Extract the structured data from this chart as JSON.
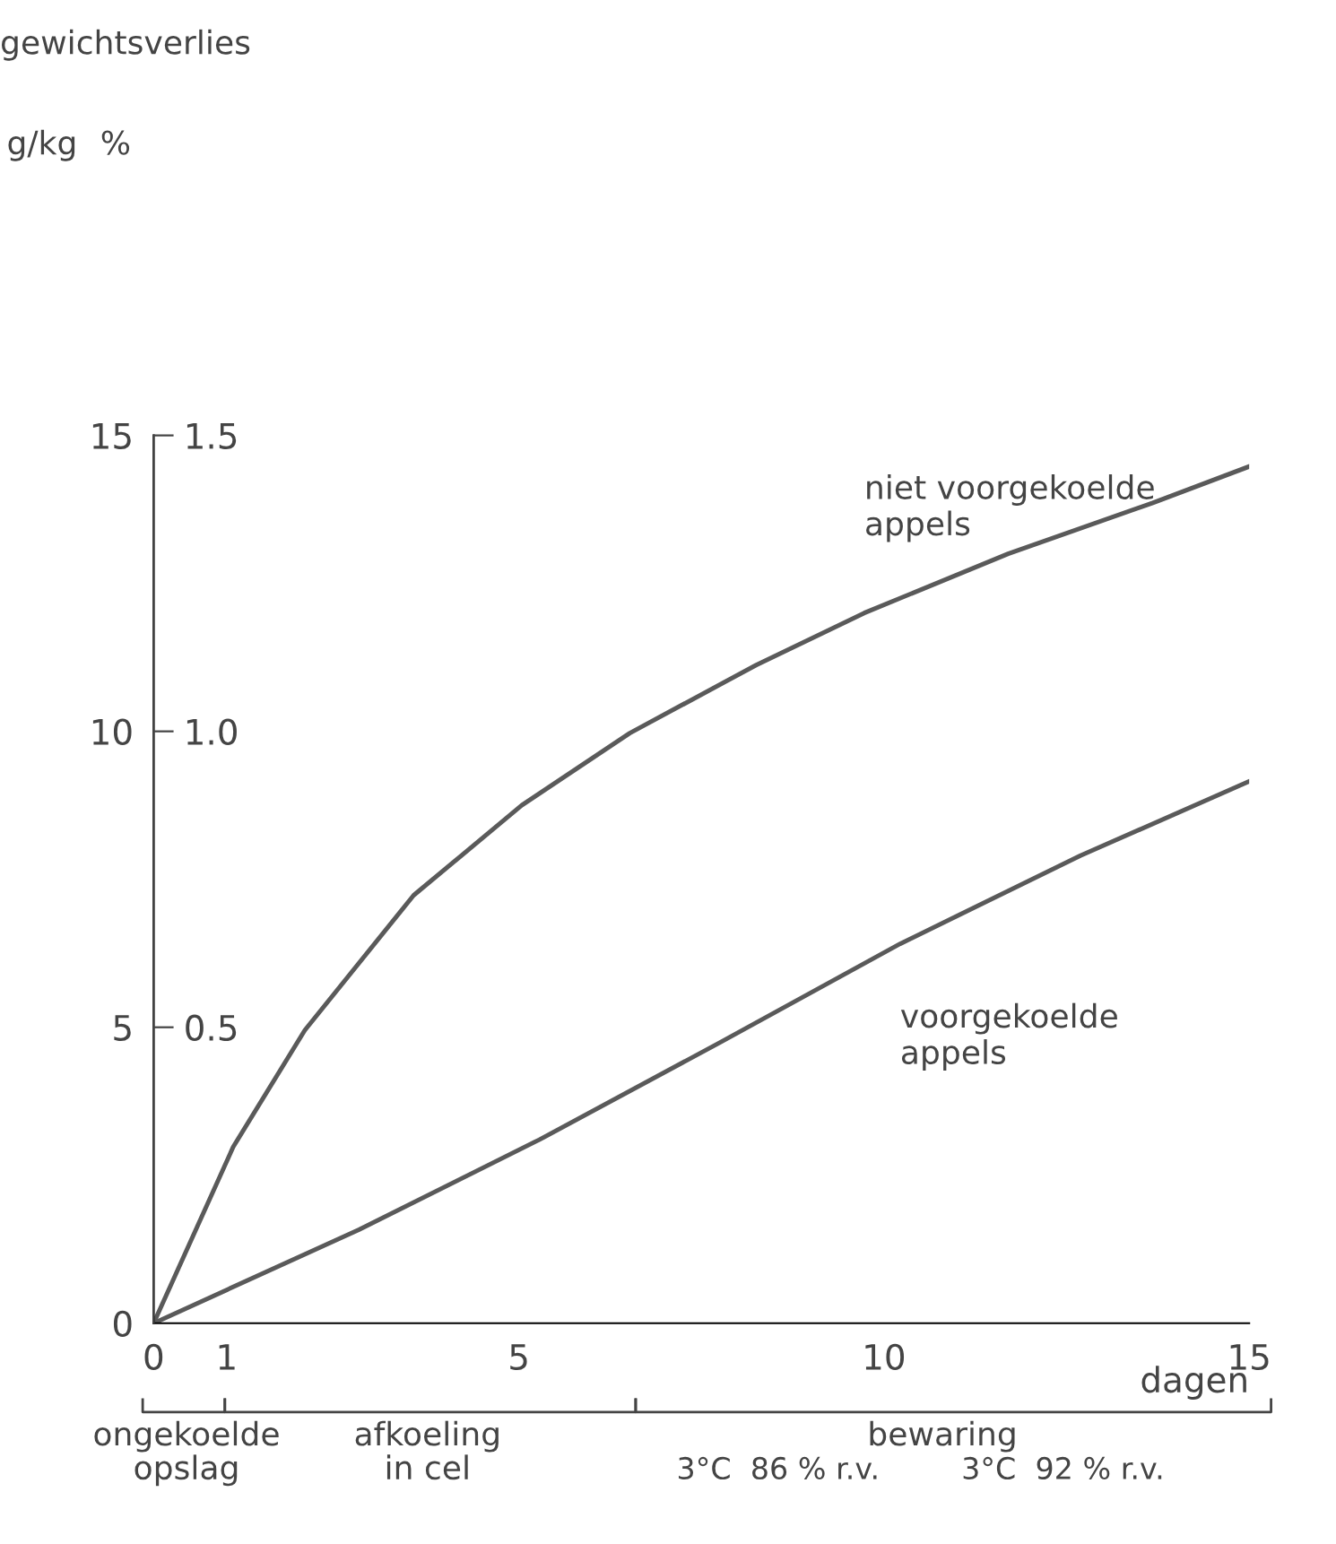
{
  "chart_data": {
    "type": "line",
    "title": "gewichtsverlies",
    "xlabel": "dagen",
    "xlim": [
      0,
      15
    ],
    "xticks": [
      0,
      1,
      5,
      10,
      15
    ],
    "ylim": [
      0,
      15
    ],
    "yticks": [
      0,
      5,
      10,
      15
    ],
    "y2lim": [
      0,
      1.5
    ],
    "y2ticks": [
      0.5,
      {
        "value": 1.0,
        "label": "1.0"
      },
      1.5
    ],
    "grid": false,
    "legend": false,
    "marker": "none",
    "line_style": "solid",
    "series": [
      {
        "name": "niet voorgekoelde appels",
        "color": "#5a5a5a",
        "x": [
          0,
          1.09,
          2.07,
          3.56,
          5.04,
          6.52,
          8.25,
          9.73,
          11.7,
          13.68,
          14.99
        ],
        "values": [
          0,
          2.98,
          4.95,
          7.23,
          8.75,
          9.97,
          11.12,
          12.0,
          13.0,
          13.86,
          14.47
        ]
      },
      {
        "name": "voorgekoelde appels",
        "color": "#5a5a5a",
        "x": [
          0,
          2.81,
          5.28,
          7.75,
          10.22,
          12.69,
          14.99
        ],
        "values": [
          0,
          1.58,
          3.1,
          4.74,
          6.41,
          7.9,
          9.15
        ]
      }
    ],
    "annotations": [
      "g/kg",
      "%",
      "ongekoelde\nopslag",
      "afkoeling\nin cel",
      "bewaring",
      "3°C  86 % r.v.",
      "3°C  92 % r.v."
    ]
  }
}
